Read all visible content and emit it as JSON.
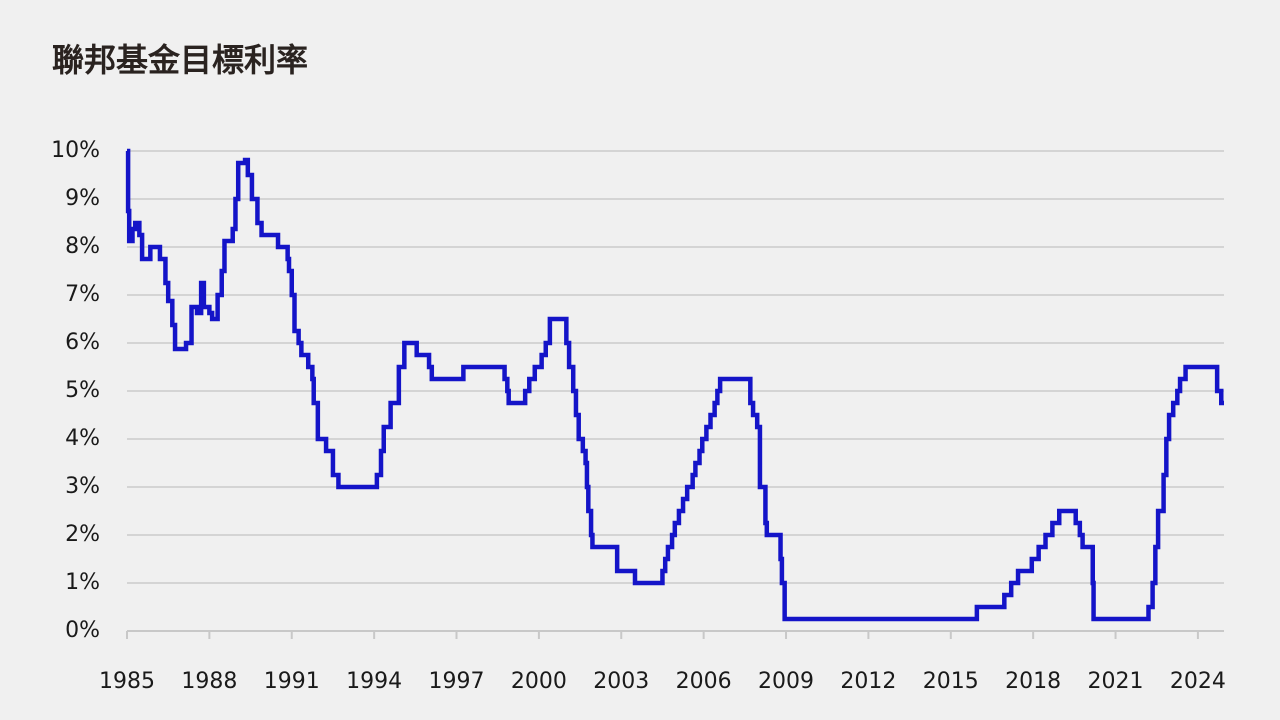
{
  "chart_data": {
    "type": "line",
    "step": "post",
    "title": "聯邦基金目標利率",
    "x": [
      1985.0,
      1985.04,
      1985.08,
      1985.2,
      1985.3,
      1985.45,
      1985.55,
      1985.85,
      1986.2,
      1986.4,
      1986.5,
      1986.65,
      1986.75,
      1987.15,
      1987.35,
      1987.55,
      1987.7,
      1987.8,
      1988.0,
      1988.1,
      1988.3,
      1988.45,
      1988.55,
      1988.85,
      1988.95,
      1989.05,
      1989.3,
      1989.4,
      1989.55,
      1989.75,
      1989.9,
      1990.5,
      1990.85,
      1990.9,
      1991.0,
      1991.1,
      1991.25,
      1991.35,
      1991.6,
      1991.75,
      1991.8,
      1991.95,
      1992.25,
      1992.5,
      1992.7,
      1994.1,
      1994.25,
      1994.35,
      1994.6,
      1994.9,
      1995.1,
      1995.55,
      1996.0,
      1996.1,
      1997.25,
      1998.75,
      1998.85,
      1998.9,
      1999.5,
      1999.65,
      1999.85,
      2000.1,
      2000.25,
      2000.4,
      2001.0,
      2001.1,
      2001.25,
      2001.35,
      2001.45,
      2001.6,
      2001.7,
      2001.75,
      2001.8,
      2001.9,
      2001.95,
      2002.85,
      2003.5,
      2004.5,
      2004.6,
      2004.7,
      2004.85,
      2004.95,
      2005.1,
      2005.25,
      2005.4,
      2005.6,
      2005.7,
      2005.85,
      2005.95,
      2006.1,
      2006.25,
      2006.4,
      2006.5,
      2006.6,
      2007.7,
      2007.8,
      2007.95,
      2008.05,
      2008.25,
      2008.3,
      2008.8,
      2008.85,
      2008.95,
      2015.95,
      2016.95,
      2017.2,
      2017.45,
      2017.95,
      2018.2,
      2018.45,
      2018.7,
      2018.95,
      2019.55,
      2019.7,
      2019.8,
      2020.17,
      2020.2,
      2022.2,
      2022.35,
      2022.45,
      2022.55,
      2022.75,
      2022.85,
      2022.95,
      2023.1,
      2023.25,
      2023.35,
      2023.55,
      2024.7,
      2024.85,
      2024.95
    ],
    "values": [
      10,
      8.75,
      8.125,
      8.375,
      8.5,
      8.25,
      7.75,
      8.0,
      7.75,
      7.25,
      6.875,
      6.375,
      5.875,
      6.0,
      6.75,
      6.625,
      7.25,
      6.75,
      6.625,
      6.5,
      7.0,
      7.5,
      8.125,
      8.375,
      9.0,
      9.75,
      9.8125,
      9.5,
      9.0,
      8.5,
      8.25,
      8.0,
      7.75,
      7.5,
      7.0,
      6.25,
      6.0,
      5.75,
      5.5,
      5.25,
      4.75,
      4.0,
      3.75,
      3.25,
      3.0,
      3.25,
      3.75,
      4.25,
      4.75,
      5.5,
      6.0,
      5.75,
      5.5,
      5.25,
      5.5,
      5.25,
      5.0,
      4.75,
      5.0,
      5.25,
      5.5,
      5.75,
      6.0,
      6.5,
      6.0,
      5.5,
      5.0,
      4.5,
      4.0,
      3.75,
      3.5,
      3.0,
      2.5,
      2.0,
      1.75,
      1.25,
      1.0,
      1.25,
      1.5,
      1.75,
      2.0,
      2.25,
      2.5,
      2.75,
      3.0,
      3.25,
      3.5,
      3.75,
      4.0,
      4.25,
      4.5,
      4.75,
      5.0,
      5.25,
      4.75,
      4.5,
      4.25,
      3.0,
      2.25,
      2.0,
      1.5,
      1.0,
      0.25,
      0.5,
      0.75,
      1.0,
      1.25,
      1.5,
      1.75,
      2.0,
      2.25,
      2.5,
      2.25,
      2.0,
      1.75,
      1.0,
      0.25,
      0.5,
      1.0,
      1.75,
      2.5,
      3.25,
      4.0,
      4.5,
      4.75,
      5.0,
      5.25,
      5.5,
      5.0,
      4.75,
      4.75
    ],
    "color": "#1414c8",
    "xlim": [
      1985,
      2024.95
    ],
    "xticks": [
      1985,
      1988,
      1991,
      1994,
      1997,
      2000,
      2003,
      2006,
      2009,
      2012,
      2015,
      2018,
      2021,
      2024
    ],
    "ylim": [
      0,
      10
    ],
    "yticks": [
      {
        "value": 0,
        "label": "0%"
      },
      {
        "value": 1,
        "label": "1%"
      },
      {
        "value": 2,
        "label": "2%"
      },
      {
        "value": 3,
        "label": "3%"
      },
      {
        "value": 4,
        "label": "4%"
      },
      {
        "value": 5,
        "label": "5%"
      },
      {
        "value": 6,
        "label": "6%"
      },
      {
        "value": 7,
        "label": "7%"
      },
      {
        "value": 8,
        "label": "8%"
      },
      {
        "value": 9,
        "label": "9%"
      },
      {
        "value": 10,
        "label": "10%"
      }
    ],
    "grid": true
  }
}
